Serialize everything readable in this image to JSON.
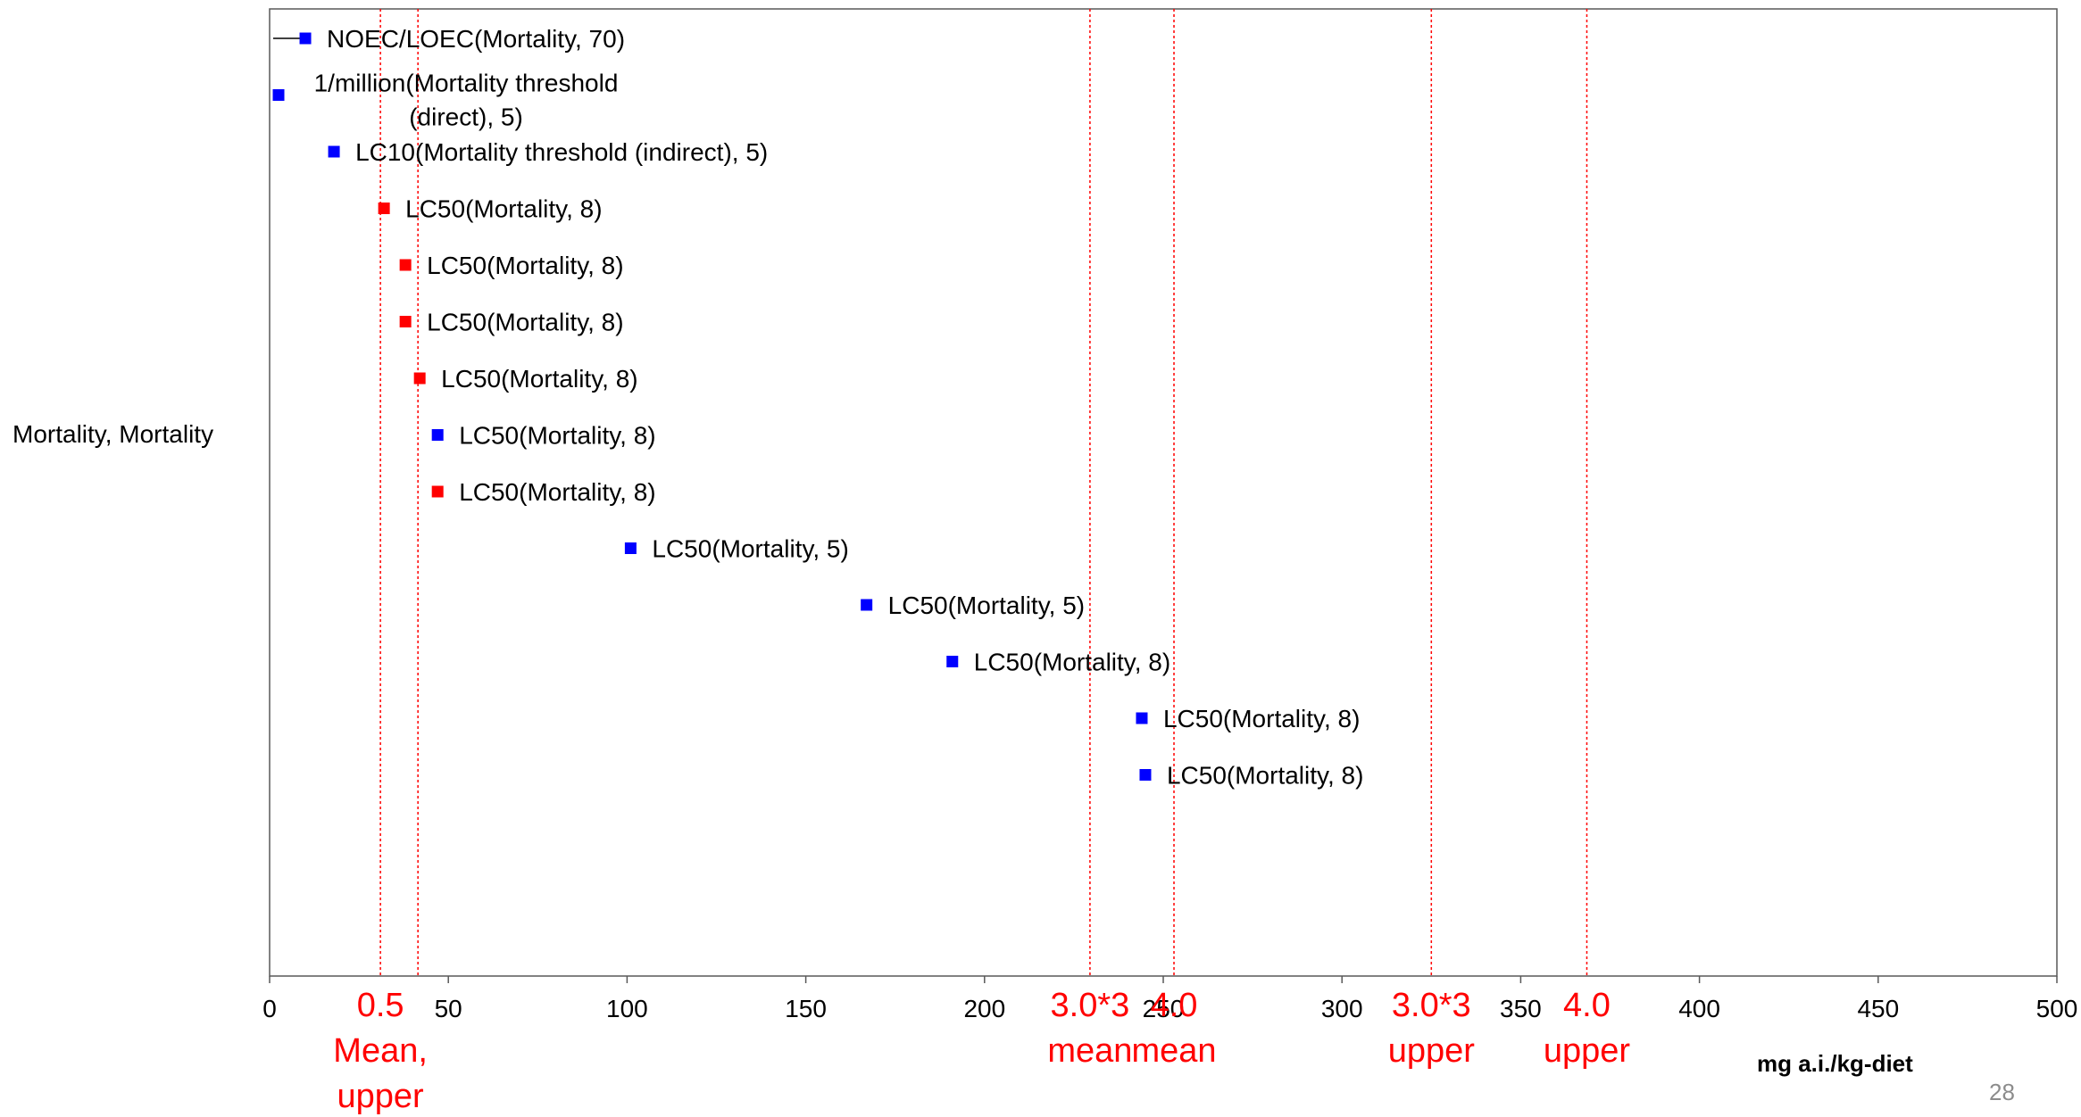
{
  "page_number": "28",
  "chart_data": {
    "type": "scatter",
    "xlabel": "mg a.i./kg-diet",
    "category_label": "Mortality, Mortality",
    "xlim": [
      0,
      500
    ],
    "xticks": [
      0,
      50,
      100,
      150,
      200,
      250,
      300,
      350,
      400,
      450,
      500
    ],
    "grid": false,
    "colors": {
      "blue": "#0000ff",
      "red": "#ff0000",
      "reference_line": "#ff0000"
    },
    "points": [
      {
        "x": 10,
        "label": "NOEC/LOEC(Mortality, 70)",
        "color": "blue",
        "range_low": 1
      },
      {
        "x": 2.5,
        "label": "1/million(Mortality threshold (direct), 5)",
        "label_lines": [
          "1/million(Mortality threshold",
          "(direct), 5)"
        ],
        "color": "blue",
        "label_color": "red"
      },
      {
        "x": 18,
        "label": "LC10(Mortality threshold (indirect), 5)",
        "color": "blue"
      },
      {
        "x": 32,
        "label": "LC50(Mortality, 8)",
        "color": "red"
      },
      {
        "x": 38,
        "label": "LC50(Mortality, 8)",
        "color": "red"
      },
      {
        "x": 38,
        "label": "LC50(Mortality, 8)",
        "color": "red"
      },
      {
        "x": 42,
        "label": "LC50(Mortality, 8)",
        "color": "red"
      },
      {
        "x": 47,
        "label": "LC50(Mortality, 8)",
        "color": "blue"
      },
      {
        "x": 47,
        "label": "LC50(Mortality, 8)",
        "color": "red"
      },
      {
        "x": 101,
        "label": "LC50(Mortality, 5)",
        "color": "blue"
      },
      {
        "x": 167,
        "label": "LC50(Mortality, 5)",
        "color": "blue"
      },
      {
        "x": 191,
        "label": "LC50(Mortality, 8)",
        "color": "blue"
      },
      {
        "x": 244,
        "label": "LC50(Mortality, 8)",
        "color": "blue"
      },
      {
        "x": 245,
        "label": "LC50(Mortality, 8)",
        "color": "blue"
      }
    ],
    "reference_lines": [
      {
        "x": 31,
        "label_lines": [
          "0.5",
          "Mean,",
          "upper"
        ]
      },
      {
        "x": 41.5,
        "label_lines": []
      },
      {
        "x": 229.5,
        "label_lines": [
          "3.0*3",
          "mean"
        ]
      },
      {
        "x": 253,
        "label_lines": [
          "4.0",
          "mean"
        ]
      },
      {
        "x": 325,
        "label_lines": [
          "3.0*3",
          "upper"
        ]
      },
      {
        "x": 368.5,
        "label_lines": [
          "4.0",
          "upper"
        ]
      }
    ]
  }
}
